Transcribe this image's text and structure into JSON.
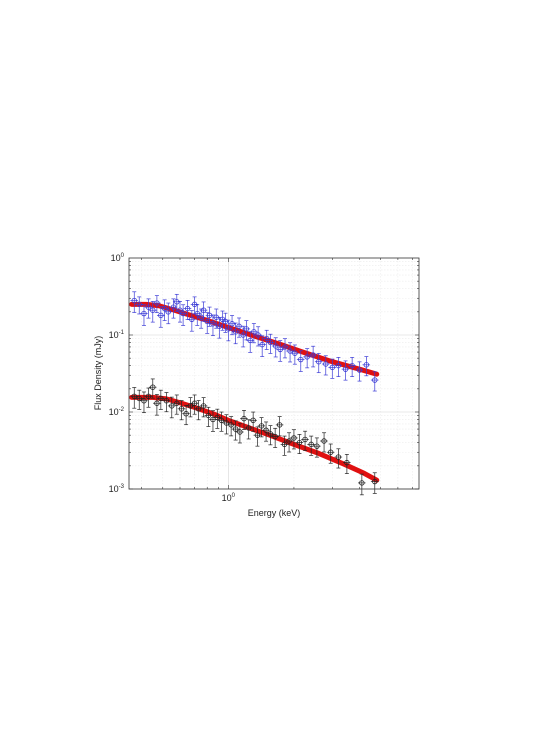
{
  "chart_data": {
    "type": "scatter",
    "title": "",
    "xlabel": "Energy (keV)",
    "ylabel": "Flux Density (mJy)",
    "xscale": "log",
    "yscale": "log",
    "xlim": [
      0.35,
      7.5
    ],
    "ylim": [
      0.001,
      1
    ],
    "grid": true,
    "legend": "none",
    "x_ticks": [
      {
        "base": "10",
        "exp": "0",
        "value": 1
      }
    ],
    "y_ticks": [
      {
        "base": "10",
        "exp": "-3",
        "value": 0.001
      },
      {
        "base": "10",
        "exp": "-2",
        "value": 0.01
      },
      {
        "base": "10",
        "exp": "-1",
        "value": 0.1
      },
      {
        "base": "10",
        "exp": "0",
        "value": 1
      }
    ],
    "series": [
      {
        "color": "#3b3bd6",
        "points": [
          [
            0.37,
            0.28,
            0.3
          ],
          [
            0.39,
            0.25,
            0.25
          ],
          [
            0.41,
            0.19,
            0.3
          ],
          [
            0.43,
            0.23,
            0.28
          ],
          [
            0.45,
            0.21,
            0.3
          ],
          [
            0.47,
            0.26,
            0.25
          ],
          [
            0.49,
            0.18,
            0.3
          ],
          [
            0.51,
            0.22,
            0.3
          ],
          [
            0.53,
            0.2,
            0.3
          ],
          [
            0.56,
            0.23,
            0.28
          ],
          [
            0.58,
            0.27,
            0.25
          ],
          [
            0.6,
            0.21,
            0.3
          ],
          [
            0.62,
            0.19,
            0.3
          ],
          [
            0.65,
            0.22,
            0.28
          ],
          [
            0.68,
            0.16,
            0.3
          ],
          [
            0.7,
            0.25,
            0.25
          ],
          [
            0.72,
            0.19,
            0.3
          ],
          [
            0.75,
            0.17,
            0.28
          ],
          [
            0.77,
            0.21,
            0.28
          ],
          [
            0.8,
            0.15,
            0.3
          ],
          [
            0.82,
            0.18,
            0.28
          ],
          [
            0.85,
            0.14,
            0.3
          ],
          [
            0.88,
            0.17,
            0.28
          ],
          [
            0.91,
            0.13,
            0.3
          ],
          [
            0.94,
            0.16,
            0.28
          ],
          [
            0.97,
            0.15,
            0.28
          ],
          [
            1.0,
            0.12,
            0.3
          ],
          [
            1.04,
            0.14,
            0.28
          ],
          [
            1.08,
            0.11,
            0.3
          ],
          [
            1.12,
            0.13,
            0.28
          ],
          [
            1.17,
            0.1,
            0.3
          ],
          [
            1.21,
            0.12,
            0.28
          ],
          [
            1.26,
            0.085,
            0.3
          ],
          [
            1.31,
            0.11,
            0.28
          ],
          [
            1.37,
            0.1,
            0.28
          ],
          [
            1.43,
            0.075,
            0.3
          ],
          [
            1.5,
            0.09,
            0.28
          ],
          [
            1.56,
            0.08,
            0.28
          ],
          [
            1.65,
            0.072,
            0.28
          ],
          [
            1.73,
            0.065,
            0.3
          ],
          [
            1.82,
            0.07,
            0.28
          ],
          [
            1.92,
            0.062,
            0.28
          ],
          [
            2.02,
            0.058,
            0.28
          ],
          [
            2.15,
            0.048,
            0.3
          ],
          [
            2.3,
            0.052,
            0.28
          ],
          [
            2.45,
            0.055,
            0.3
          ],
          [
            2.6,
            0.045,
            0.28
          ],
          [
            2.8,
            0.042,
            0.28
          ],
          [
            3.0,
            0.038,
            0.28
          ],
          [
            3.2,
            0.04,
            0.28
          ],
          [
            3.45,
            0.036,
            0.28
          ],
          [
            3.7,
            0.04,
            0.28
          ],
          [
            4.0,
            0.035,
            0.28
          ],
          [
            4.3,
            0.041,
            0.28
          ],
          [
            4.7,
            0.026,
            0.28
          ]
        ],
        "model": [
          [
            0.36,
            0.25
          ],
          [
            0.42,
            0.25
          ],
          [
            0.48,
            0.24
          ],
          [
            0.55,
            0.215
          ],
          [
            0.65,
            0.185
          ],
          [
            0.8,
            0.155
          ],
          [
            1.0,
            0.125
          ],
          [
            1.3,
            0.098
          ],
          [
            1.7,
            0.077
          ],
          [
            2.2,
            0.06
          ],
          [
            3.0,
            0.045
          ],
          [
            4.0,
            0.036
          ],
          [
            4.8,
            0.031
          ]
        ]
      },
      {
        "color": "#222222",
        "points": [
          [
            0.37,
            0.016,
            0.3
          ],
          [
            0.39,
            0.015,
            0.28
          ],
          [
            0.41,
            0.014,
            0.3
          ],
          [
            0.43,
            0.016,
            0.28
          ],
          [
            0.45,
            0.021,
            0.28
          ],
          [
            0.47,
            0.013,
            0.3
          ],
          [
            0.49,
            0.015,
            0.28
          ],
          [
            0.52,
            0.014,
            0.28
          ],
          [
            0.55,
            0.012,
            0.3
          ],
          [
            0.58,
            0.013,
            0.28
          ],
          [
            0.61,
            0.011,
            0.28
          ],
          [
            0.64,
            0.0095,
            0.28
          ],
          [
            0.67,
            0.012,
            0.28
          ],
          [
            0.7,
            0.013,
            0.28
          ],
          [
            0.73,
            0.011,
            0.28
          ],
          [
            0.77,
            0.012,
            0.28
          ],
          [
            0.81,
            0.009,
            0.28
          ],
          [
            0.85,
            0.008,
            0.3
          ],
          [
            0.89,
            0.0085,
            0.28
          ],
          [
            0.93,
            0.0078,
            0.28
          ],
          [
            0.98,
            0.0072,
            0.28
          ],
          [
            1.03,
            0.0068,
            0.28
          ],
          [
            1.08,
            0.006,
            0.28
          ],
          [
            1.13,
            0.0055,
            0.28
          ],
          [
            1.18,
            0.0082,
            0.28
          ],
          [
            1.24,
            0.0062,
            0.28
          ],
          [
            1.3,
            0.0078,
            0.28
          ],
          [
            1.36,
            0.005,
            0.28
          ],
          [
            1.42,
            0.0066,
            0.28
          ],
          [
            1.49,
            0.0058,
            0.28
          ],
          [
            1.56,
            0.0052,
            0.28
          ],
          [
            1.64,
            0.0048,
            0.28
          ],
          [
            1.72,
            0.0068,
            0.28
          ],
          [
            1.81,
            0.0038,
            0.28
          ],
          [
            1.9,
            0.0042,
            0.28
          ],
          [
            2.0,
            0.0046,
            0.28
          ],
          [
            2.12,
            0.004,
            0.28
          ],
          [
            2.25,
            0.0044,
            0.28
          ],
          [
            2.4,
            0.0038,
            0.28
          ],
          [
            2.55,
            0.0036,
            0.28
          ],
          [
            2.75,
            0.0042,
            0.28
          ],
          [
            2.95,
            0.003,
            0.28
          ],
          [
            3.2,
            0.0026,
            0.28
          ],
          [
            3.5,
            0.0022,
            0.28
          ],
          [
            4.1,
            0.0012,
            0.3
          ],
          [
            4.7,
            0.00125,
            0.3
          ]
        ],
        "model": [
          [
            0.36,
            0.0155
          ],
          [
            0.45,
            0.0155
          ],
          [
            0.52,
            0.0148
          ],
          [
            0.6,
            0.0132
          ],
          [
            0.7,
            0.0115
          ],
          [
            0.85,
            0.0095
          ],
          [
            1.0,
            0.0078
          ],
          [
            1.25,
            0.0062
          ],
          [
            1.55,
            0.005
          ],
          [
            2.0,
            0.0038
          ],
          [
            2.6,
            0.0029
          ],
          [
            3.4,
            0.0021
          ],
          [
            4.2,
            0.0016
          ],
          [
            4.8,
            0.0013
          ]
        ]
      }
    ]
  }
}
